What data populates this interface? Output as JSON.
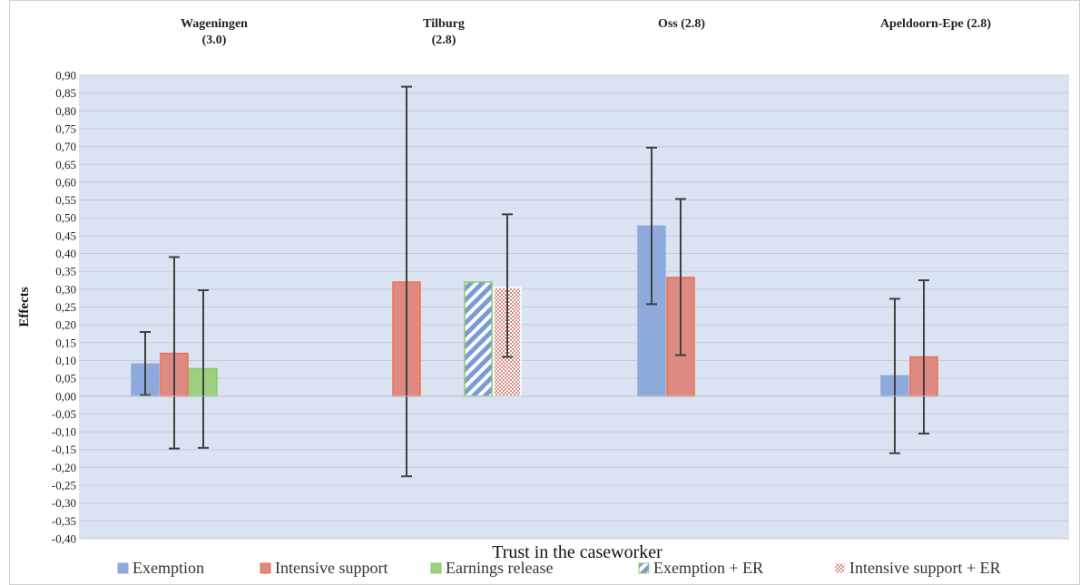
{
  "chart_data": {
    "type": "bar",
    "ylabel": "Effects",
    "xlabel": "Trust in the caseworker",
    "ylim": [
      -0.4,
      0.9
    ],
    "ytick_step": 0.05,
    "grid": true,
    "legend_position": "bottom",
    "groups": [
      {
        "label_lines": [
          "Wageningen",
          "(3.0)"
        ]
      },
      {
        "label_lines": [
          "Tilburg",
          "(2.8)"
        ]
      },
      {
        "label_lines": [
          "Oss (2.8)"
        ]
      },
      {
        "label_lines": [
          "Apeldoorn-Epe (2.8)"
        ]
      }
    ],
    "series": [
      {
        "name": "Exemption",
        "fill": "#8eaadc",
        "stroke": "#8eaadc",
        "pattern": "solid",
        "values": [
          0.09,
          null,
          0.477,
          0.057
        ],
        "err_low": [
          0.003,
          null,
          0.258,
          -0.16
        ],
        "err_high": [
          0.18,
          null,
          0.697,
          0.273
        ]
      },
      {
        "name": "Intensive support",
        "fill": "#dd8a83",
        "stroke": "#f0704d",
        "pattern": "solid",
        "values": [
          0.12,
          0.32,
          0.333,
          0.11
        ],
        "err_low": [
          -0.147,
          -0.225,
          0.115,
          -0.105
        ],
        "err_high": [
          0.39,
          0.868,
          0.553,
          0.325
        ]
      },
      {
        "name": "Earnings release",
        "fill": "#9fcf80",
        "stroke": "#8acd5f",
        "pattern": "solid",
        "values": [
          0.077,
          null,
          null,
          null
        ],
        "err_low": [
          -0.145,
          null,
          null,
          null
        ],
        "err_high": [
          0.297,
          null,
          null,
          null
        ]
      },
      {
        "name": "Exemption + ER",
        "fill": "#7a9ad8",
        "stroke": "#8acd5f",
        "pattern": "stripes",
        "values": [
          null,
          0.32,
          null,
          null
        ],
        "err_low": [
          null,
          null,
          null,
          null
        ],
        "err_high": [
          null,
          null,
          null,
          null
        ]
      },
      {
        "name": "Intensive support + ER",
        "fill": "#d88a85",
        "stroke": "#ffffff",
        "pattern": "checker",
        "values": [
          null,
          0.305,
          null,
          null
        ],
        "err_low": [
          null,
          0.11,
          null,
          null
        ],
        "err_high": [
          null,
          0.51,
          null,
          null
        ]
      }
    ],
    "colors": {
      "plot_background": "#dae3f2",
      "gridline": "#c9cbcf",
      "errorbar": "#404040"
    }
  }
}
